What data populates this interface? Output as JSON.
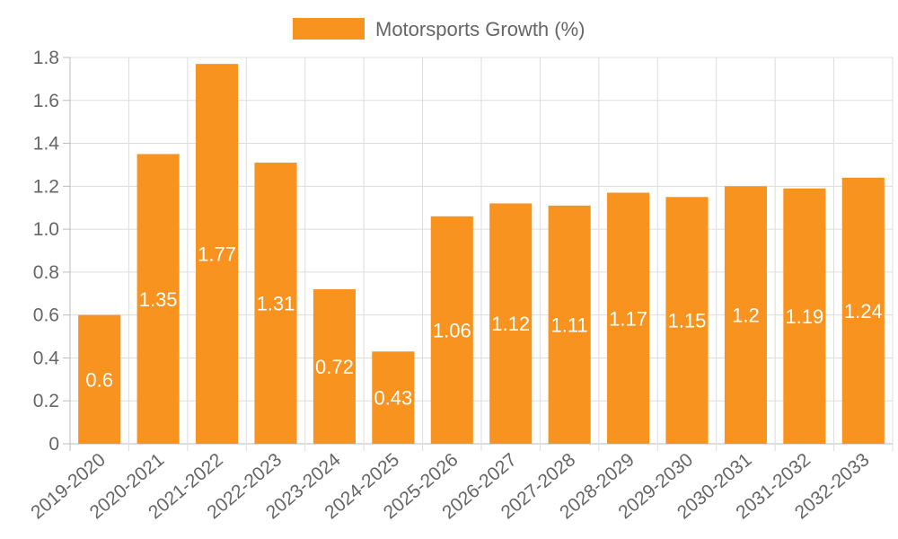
{
  "chart_data": {
    "type": "bar",
    "title": "",
    "xlabel": "",
    "ylabel": "",
    "legend": {
      "position": "top",
      "entries": [
        "Motorsports Growth (%)"
      ]
    },
    "categories": [
      "2019-2020",
      "2020-2021",
      "2021-2022",
      "2022-2023",
      "2023-2024",
      "2024-2025",
      "2025-2026",
      "2026-2027",
      "2027-2028",
      "2028-2029",
      "2029-2030",
      "2030-2031",
      "2031-2032",
      "2032-2033"
    ],
    "series": [
      {
        "name": "Motorsports Growth (%)",
        "values": [
          0.6,
          1.35,
          1.77,
          1.31,
          0.72,
          0.43,
          1.06,
          1.12,
          1.11,
          1.17,
          1.15,
          1.2,
          1.19,
          1.24
        ],
        "labels": [
          "0.6",
          "1.35",
          "1.77",
          "1.31",
          "0.72",
          "0.43",
          "1.06",
          "1.12",
          "1.11",
          "1.17",
          "1.15",
          "1.2",
          "1.19",
          "1.24"
        ],
        "color": "#f7931e"
      }
    ],
    "ylim": [
      0,
      1.8
    ],
    "yticks": [
      "0",
      "0.2",
      "0.4",
      "0.6",
      "0.8",
      "1.0",
      "1.2",
      "1.4",
      "1.6",
      "1.8"
    ],
    "grid": true
  }
}
